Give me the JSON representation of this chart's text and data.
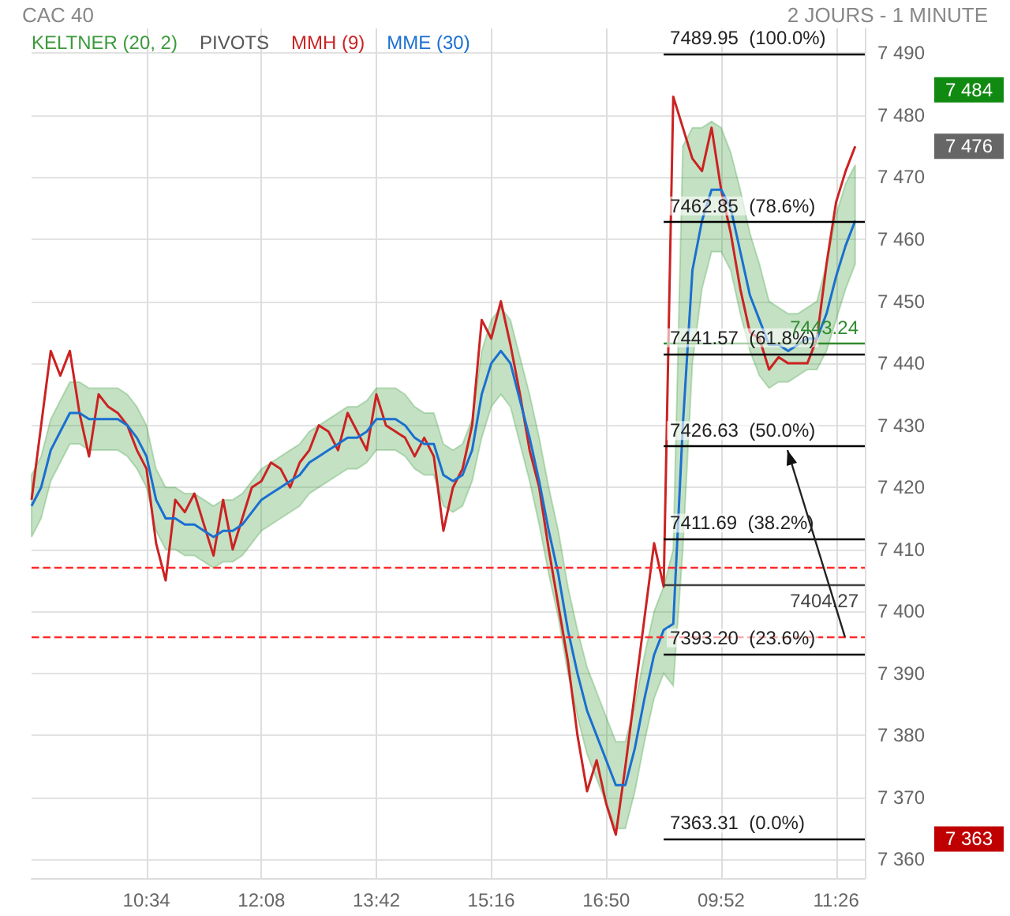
{
  "chart_data": {
    "type": "line",
    "title": "CAC 40",
    "subtitle": "2 JOURS - 1 MINUTE",
    "categories": [
      null,
      null,
      null,
      null,
      null,
      null,
      null,
      null,
      null,
      null,
      null,
      null,
      "10:34",
      null,
      null,
      null,
      null,
      null,
      null,
      null,
      null,
      null,
      null,
      null,
      "12:08",
      null,
      null,
      null,
      null,
      null,
      null,
      null,
      null,
      null,
      null,
      null,
      "13:42",
      null,
      null,
      null,
      null,
      null,
      null,
      null,
      null,
      null,
      null,
      null,
      "15:16",
      null,
      null,
      null,
      null,
      null,
      null,
      null,
      null,
      null,
      null,
      null,
      "16:50",
      null,
      null,
      null,
      null,
      null,
      null,
      null,
      null,
      null,
      null,
      null,
      "09:52",
      null,
      null,
      null,
      null,
      null,
      null,
      null,
      null,
      null,
      null,
      null,
      "11:26",
      null,
      null,
      null
    ],
    "series": [
      {
        "name": "MMH (9)",
        "color": "#cc2222",
        "values": [
          7418,
          7430,
          7442,
          7438,
          7442,
          7432,
          7425,
          7435,
          7433,
          7432,
          7430,
          7426,
          7423,
          7411,
          7405,
          7418,
          7416,
          7419,
          7414,
          7409,
          7418,
          7410,
          7415,
          7420,
          7421,
          7424,
          7423,
          7420,
          7424,
          7426,
          7430,
          7429,
          7426,
          7432,
          7429,
          7426,
          7435,
          7430,
          7429,
          7428,
          7425,
          7428,
          7425,
          7413,
          7420,
          7423,
          7430,
          7447,
          7444,
          7450,
          7443,
          7435,
          7426,
          7420,
          7410,
          7401,
          7392,
          7380,
          7371,
          7376,
          7369,
          7364,
          7375,
          7387,
          7399,
          7411,
          7404,
          7483,
          7478,
          7473,
          7471,
          7478,
          7468,
          7461,
          7452,
          7445,
          7444,
          7439,
          7441,
          7440,
          7440,
          7440,
          7444,
          7456,
          7466,
          7471,
          7475,
          null
        ]
      },
      {
        "name": "MME (30)",
        "color": "#1a6fd0",
        "values": [
          7417,
          7420,
          7426,
          7429,
          7432,
          7432,
          7431,
          7431,
          7431,
          7431,
          7430,
          7428,
          7425,
          7418,
          7415,
          7415,
          7414,
          7414,
          7413,
          7412,
          7413,
          7413,
          7414,
          7416,
          7418,
          7419,
          7420,
          7421,
          7422,
          7424,
          7425,
          7426,
          7427,
          7428,
          7428,
          7429,
          7431,
          7431,
          7431,
          7430,
          7428,
          7427,
          7427,
          7422,
          7421,
          7422,
          7426,
          7435,
          7440,
          7442,
          7440,
          7434,
          7428,
          7421,
          7413,
          7406,
          7397,
          7390,
          7384,
          7380,
          7376,
          7372,
          7372,
          7378,
          7386,
          7393,
          7397,
          7398,
          7430,
          7455,
          7463,
          7468,
          7468,
          7465,
          7458,
          7451,
          7447,
          7443,
          7443,
          7442,
          7443,
          7444,
          7444,
          7448,
          7454,
          7459,
          7463,
          null
        ],
        "lower": [
          7412,
          7415,
          7421,
          7424,
          7427,
          7427,
          7426,
          7426,
          7426,
          7426,
          7425,
          7423,
          7420,
          7413,
          7410,
          7410,
          7409,
          7409,
          7408,
          7407,
          7408,
          7408,
          7409,
          7411,
          7413,
          7414,
          7415,
          7416,
          7417,
          7419,
          7420,
          7421,
          7422,
          7423,
          7423,
          7424,
          7426,
          7426,
          7426,
          7425,
          7423,
          7422,
          7422,
          7417,
          7416,
          7417,
          7421,
          7428,
          7433,
          7435,
          7433,
          7427,
          7421,
          7414,
          7406,
          7399,
          7390,
          7383,
          7377,
          7373,
          7369,
          7365,
          7365,
          7371,
          7379,
          7386,
          7390,
          7388,
          7410,
          7440,
          7452,
          7458,
          7458,
          7455,
          7448,
          7442,
          7438,
          7436,
          7437,
          7437,
          7438,
          7439,
          7439,
          7442,
          7447,
          7452,
          7456,
          null
        ],
        "upper": [
          7422,
          7425,
          7431,
          7434,
          7437,
          7437,
          7436,
          7436,
          7436,
          7436,
          7435,
          7433,
          7430,
          7423,
          7420,
          7420,
          7419,
          7419,
          7418,
          7417,
          7418,
          7418,
          7419,
          7421,
          7423,
          7424,
          7425,
          7426,
          7427,
          7429,
          7430,
          7431,
          7432,
          7433,
          7433,
          7434,
          7436,
          7436,
          7436,
          7435,
          7433,
          7432,
          7432,
          7427,
          7426,
          7427,
          7431,
          7442,
          7447,
          7449,
          7447,
          7441,
          7435,
          7428,
          7420,
          7413,
          7404,
          7397,
          7391,
          7387,
          7383,
          7379,
          7379,
          7385,
          7393,
          7400,
          7404,
          7410,
          7475,
          7478,
          7478,
          7479,
          7478,
          7474,
          7468,
          7461,
          7456,
          7450,
          7449,
          7448,
          7448,
          7449,
          7450,
          7456,
          7464,
          7469,
          7472,
          null
        ]
      }
    ],
    "ylim": [
      7357,
      7494
    ],
    "yticks": [
      {
        "value": 7360,
        "label": "7 360"
      },
      {
        "value": 7370,
        "label": "7 370"
      },
      {
        "value": 7380,
        "label": "7 380"
      },
      {
        "value": 7390,
        "label": "7 390"
      },
      {
        "value": 7400,
        "label": "7 400"
      },
      {
        "value": 7410,
        "label": "7 410"
      },
      {
        "value": 7420,
        "label": "7 420"
      },
      {
        "value": 7430,
        "label": "7 430"
      },
      {
        "value": 7440,
        "label": "7 440"
      },
      {
        "value": 7450,
        "label": "7 450"
      },
      {
        "value": 7460,
        "label": "7 460"
      },
      {
        "value": 7470,
        "label": "7 470"
      },
      {
        "value": 7480,
        "label": "7 480"
      },
      {
        "value": 7490,
        "label": "7 490"
      }
    ],
    "ref_lines": [
      {
        "axis": "y",
        "value": 7489.95,
        "label": "7489.95  (100.0%)"
      },
      {
        "axis": "y",
        "value": 7462.85,
        "label": "7462.85  (78.6%)"
      },
      {
        "axis": "y",
        "value": 7441.57,
        "label": "7441.57  (61.8%)"
      },
      {
        "axis": "y",
        "value": 7426.63,
        "label": "7426.63  (50.0%)"
      },
      {
        "axis": "y",
        "value": 7411.69,
        "label": "7411.69  (38.2%)"
      },
      {
        "axis": "y",
        "value": 7393.2,
        "label": "7393.20  (23.6%)"
      },
      {
        "axis": "y",
        "value": 7363.31,
        "label": "7363.31  (0.0%)"
      },
      {
        "axis": "y",
        "value": 7443.24,
        "label": "7443.24",
        "color": "#2e8b2e"
      },
      {
        "axis": "y",
        "value": 7404.27,
        "label": "7404.27",
        "color": "#444444"
      },
      {
        "axis": "y",
        "value": 7407,
        "label": null,
        "color": "#ff2a2a",
        "line_style": "dashed"
      },
      {
        "axis": "y",
        "value": 7396,
        "label": null,
        "color": "#ff2a2a",
        "line_style": "dashed"
      }
    ],
    "annotations": [
      "KELTNER (20, 2)",
      "PIVOTS",
      "7 484",
      "7 476",
      "7 363"
    ],
    "grid": true,
    "legend": "top",
    "marker": "none",
    "line_style": "solid"
  }
}
